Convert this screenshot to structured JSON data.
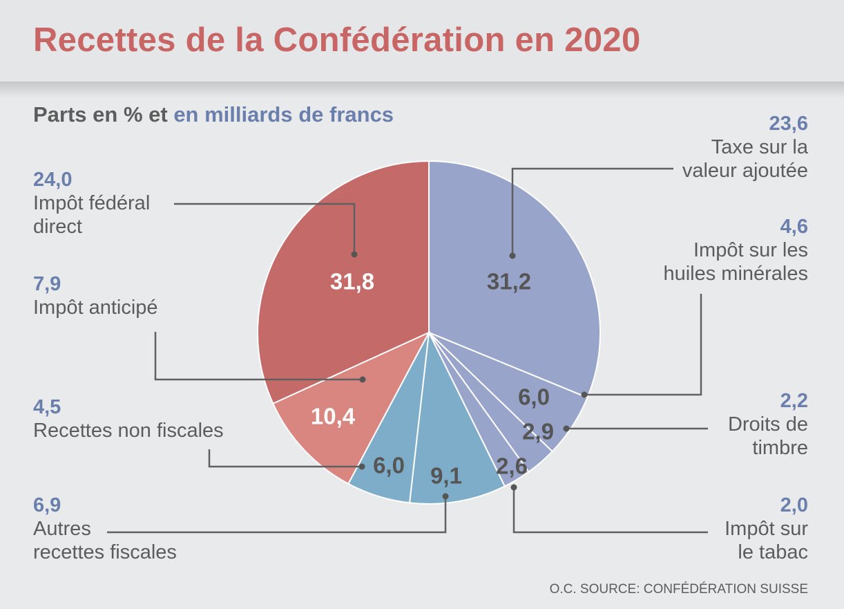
{
  "header": {
    "title": "Recettes de la Confédération en 2020",
    "subtitle_part1": "Parts en % et ",
    "subtitle_part2": "en milliards de francs"
  },
  "chart_data": {
    "type": "pie",
    "title": "Recettes de la Confédération en 2020",
    "subtitle": "Parts en % et en milliards de francs",
    "unit_percent": "%",
    "unit_amount": "milliards de francs",
    "slices": [
      {
        "label": "Taxe sur la valeur ajoutée",
        "label_line1": "Taxe sur la",
        "label_line2": "valeur ajoutée",
        "percent": 31.2,
        "percent_label": "31,2",
        "amount_label": "23,6",
        "color": "#98a4c9"
      },
      {
        "label": "Impôt sur les huiles minérales",
        "label_line1": "Impôt sur les",
        "label_line2": "huiles minérales",
        "percent": 6.0,
        "percent_label": "6,0",
        "amount_label": "4,6",
        "color": "#98a4c9"
      },
      {
        "label": "Droits de timbre",
        "label_line1": "Droits de",
        "label_line2": "timbre",
        "percent": 2.9,
        "percent_label": "2,9",
        "amount_label": "2,2",
        "color": "#98a4c9"
      },
      {
        "label": "Impôt sur le tabac",
        "label_line1": "Impôt sur",
        "label_line2": "le tabac",
        "percent": 2.6,
        "percent_label": "2,6",
        "amount_label": "2,0",
        "color": "#98a4c9"
      },
      {
        "label": "Autres recettes fiscales",
        "label_line1": "Autres",
        "label_line2": "recettes fiscales",
        "percent": 9.1,
        "percent_label": "9,1",
        "amount_label": "6,9",
        "color": "#7eadc9"
      },
      {
        "label": "Recettes non fiscales",
        "label_line1": "Recettes non fiscales",
        "label_line2": "",
        "percent": 6.0,
        "percent_label": "6,0",
        "amount_label": "4,5",
        "color": "#7eadc9"
      },
      {
        "label": "Impôt anticipé",
        "label_line1": "Impôt anticipé",
        "label_line2": "",
        "percent": 10.4,
        "percent_label": "10,4",
        "amount_label": "7,9",
        "color": "#d98580"
      },
      {
        "label": "Impôt fédéral direct",
        "label_line1": "Impôt fédéral",
        "label_line2": "direct",
        "percent": 31.8,
        "percent_label": "31,8",
        "amount_label": "24,0",
        "color": "#c46a69"
      }
    ],
    "start_angle_deg": 0,
    "direction": "clockwise",
    "legend": "callout labels"
  },
  "source": "O.C. SOURCE: CONFÉDÉRATION SUISSE"
}
